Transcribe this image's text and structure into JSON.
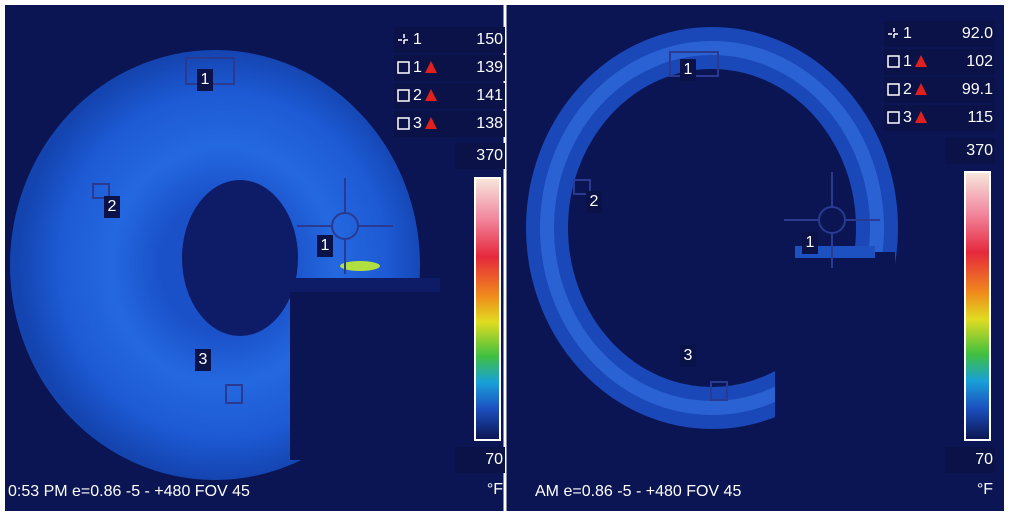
{
  "panels": [
    {
      "spot": {
        "label": "1",
        "value": "150"
      },
      "boxes": [
        {
          "label": "1",
          "value": "139"
        },
        {
          "label": "2",
          "value": "141"
        },
        {
          "label": "3",
          "value": "138"
        }
      ],
      "scale": {
        "max": "370",
        "min": "70",
        "unit": "°F"
      },
      "status": "0:53 PM e=0.86  -5 -  +480  FOV 45",
      "markers": {
        "spot": "1",
        "boxes": [
          "1",
          "2",
          "3"
        ]
      }
    },
    {
      "spot": {
        "label": "1",
        "value": "92.0"
      },
      "boxes": [
        {
          "label": "1",
          "value": "102"
        },
        {
          "label": "2",
          "value": "99.1"
        },
        {
          "label": "3",
          "value": "115"
        }
      ],
      "scale": {
        "max": "370",
        "min": "70",
        "unit": "°F"
      },
      "status": "AM e=0.86  -5 -  +480  FOV 45",
      "markers": {
        "spot": "1",
        "boxes": [
          "1",
          "2",
          "3"
        ]
      }
    }
  ]
}
